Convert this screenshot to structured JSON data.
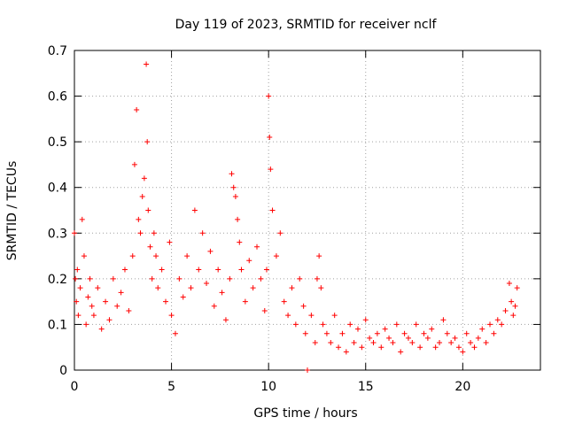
{
  "chart_data": {
    "type": "scatter",
    "title": "Day 119 of 2023, SRMTID for receiver nclf",
    "xlabel": "GPS time / hours",
    "ylabel": "SRMTID / TECUs",
    "xlim": [
      0,
      24
    ],
    "ylim": [
      0,
      0.7
    ],
    "xticks": [
      0,
      5,
      10,
      15,
      20
    ],
    "xtick_labels": [
      "0",
      "5",
      "10",
      "15",
      "20"
    ],
    "yticks": [
      0,
      0.1,
      0.2,
      0.3,
      0.4,
      0.5,
      0.6,
      0.7
    ],
    "ytick_labels": [
      "0",
      "0.1",
      "0.2",
      "0.3",
      "0.4",
      "0.5",
      "0.6",
      "0.7"
    ],
    "grid": true,
    "marker": "+",
    "color": "#ff0000",
    "series": [
      {
        "name": "SRMTID",
        "x": [
          0.0,
          0.05,
          0.1,
          0.15,
          0.2,
          0.3,
          0.4,
          0.5,
          0.6,
          0.7,
          0.8,
          0.9,
          1.0,
          1.2,
          1.4,
          1.6,
          1.8,
          2.0,
          2.2,
          2.4,
          2.6,
          2.8,
          3.0,
          3.1,
          3.2,
          3.3,
          3.4,
          3.5,
          3.6,
          3.7,
          3.75,
          3.8,
          3.9,
          4.0,
          4.1,
          4.2,
          4.3,
          4.5,
          4.7,
          4.9,
          5.0,
          5.2,
          5.4,
          5.6,
          5.8,
          6.0,
          6.2,
          6.4,
          6.6,
          6.8,
          7.0,
          7.2,
          7.4,
          7.6,
          7.8,
          8.0,
          8.1,
          8.2,
          8.3,
          8.4,
          8.5,
          8.6,
          8.8,
          9.0,
          9.2,
          9.4,
          9.6,
          9.8,
          9.9,
          10.0,
          10.05,
          10.1,
          10.2,
          10.4,
          10.6,
          10.8,
          11.0,
          11.2,
          11.4,
          11.6,
          11.8,
          11.9,
          12.0,
          12.2,
          12.4,
          12.5,
          12.6,
          12.7,
          12.8,
          13.0,
          13.2,
          13.4,
          13.6,
          13.8,
          14.0,
          14.2,
          14.4,
          14.6,
          14.8,
          15.0,
          15.2,
          15.4,
          15.6,
          15.8,
          16.0,
          16.2,
          16.4,
          16.6,
          16.8,
          17.0,
          17.2,
          17.4,
          17.6,
          17.8,
          18.0,
          18.2,
          18.4,
          18.6,
          18.8,
          19.0,
          19.2,
          19.4,
          19.6,
          19.8,
          20.0,
          20.2,
          20.4,
          20.6,
          20.8,
          21.0,
          21.2,
          21.4,
          21.6,
          21.8,
          22.0,
          22.2,
          22.4,
          22.5,
          22.6,
          22.7,
          22.8
        ],
        "y": [
          0.3,
          0.2,
          0.15,
          0.22,
          0.12,
          0.18,
          0.33,
          0.25,
          0.1,
          0.16,
          0.2,
          0.14,
          0.12,
          0.18,
          0.09,
          0.15,
          0.11,
          0.2,
          0.14,
          0.17,
          0.22,
          0.13,
          0.25,
          0.45,
          0.57,
          0.33,
          0.3,
          0.38,
          0.42,
          0.67,
          0.5,
          0.35,
          0.27,
          0.2,
          0.3,
          0.25,
          0.18,
          0.22,
          0.15,
          0.28,
          0.12,
          0.08,
          0.2,
          0.16,
          0.25,
          0.18,
          0.35,
          0.22,
          0.3,
          0.19,
          0.26,
          0.14,
          0.22,
          0.17,
          0.11,
          0.2,
          0.43,
          0.4,
          0.38,
          0.33,
          0.28,
          0.22,
          0.15,
          0.24,
          0.18,
          0.27,
          0.2,
          0.13,
          0.22,
          0.6,
          0.51,
          0.44,
          0.35,
          0.25,
          0.3,
          0.15,
          0.12,
          0.18,
          0.1,
          0.2,
          0.14,
          0.08,
          0.0,
          0.12,
          0.06,
          0.2,
          0.25,
          0.18,
          0.1,
          0.08,
          0.06,
          0.12,
          0.05,
          0.08,
          0.04,
          0.1,
          0.06,
          0.09,
          0.05,
          0.11,
          0.07,
          0.06,
          0.08,
          0.05,
          0.09,
          0.07,
          0.06,
          0.1,
          0.04,
          0.08,
          0.07,
          0.06,
          0.1,
          0.05,
          0.08,
          0.07,
          0.09,
          0.05,
          0.06,
          0.11,
          0.08,
          0.06,
          0.07,
          0.05,
          0.04,
          0.08,
          0.06,
          0.05,
          0.07,
          0.09,
          0.06,
          0.1,
          0.08,
          0.11,
          0.1,
          0.13,
          0.19,
          0.15,
          0.12,
          0.14,
          0.18
        ]
      }
    ]
  }
}
